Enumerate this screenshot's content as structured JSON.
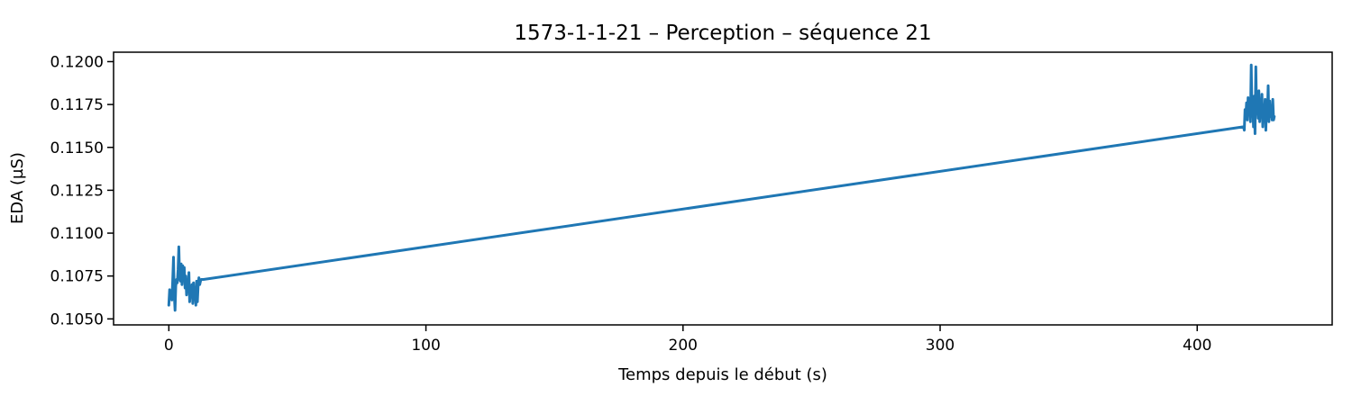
{
  "chart_data": {
    "type": "line",
    "title": "1573-1-1-21 – Perception – séquence 21",
    "xlabel": "Temps depuis le début (s)",
    "ylabel": "EDA (µS)",
    "xlim": [
      -21.5,
      452.5
    ],
    "ylim": [
      0.10465,
      0.12055
    ],
    "xticks": [
      0,
      100,
      200,
      300,
      400
    ],
    "xtick_labels": [
      "0",
      "100",
      "200",
      "300",
      "400"
    ],
    "yticks": [
      0.105,
      0.1075,
      0.11,
      0.1125,
      0.115,
      0.1175,
      0.12
    ],
    "ytick_labels": [
      "0.1050",
      "0.1075",
      "0.1100",
      "0.1125",
      "0.1150",
      "0.1175",
      "0.1200"
    ],
    "grid": false,
    "color": "#1f77b4",
    "series": [
      {
        "x": [
          0.0,
          0.3,
          0.6,
          0.9,
          1.2,
          1.5,
          1.8,
          2.1,
          2.4,
          2.7,
          3.0,
          3.3,
          3.6,
          3.9,
          4.2,
          4.5,
          4.8,
          5.1,
          5.4,
          5.7,
          6.0,
          6.3,
          6.6,
          6.9,
          7.2,
          7.5,
          7.8,
          8.1,
          8.4,
          8.7,
          9.0,
          9.3,
          9.6,
          9.9,
          10.2,
          10.5,
          10.8,
          11.1,
          11.4,
          11.7,
          12.0,
          12.3,
          12.6,
          12.9,
          13.2,
          13.5,
          418.0,
          418.3,
          418.6,
          418.9,
          419.2,
          419.5,
          419.8,
          420.1,
          420.4,
          420.7,
          421.0,
          421.3,
          421.6,
          421.9,
          422.2,
          422.5,
          422.8,
          423.1,
          423.4,
          423.7,
          424.0,
          424.3,
          424.6,
          424.9,
          425.2,
          425.5,
          425.8,
          426.1,
          426.4,
          426.7,
          427.0,
          427.3,
          427.6,
          427.9,
          428.2,
          428.5,
          428.8,
          429.1,
          429.4,
          429.7,
          430.0
        ],
        "y": [
          0.1058,
          0.1067,
          0.1062,
          0.1066,
          0.1061,
          0.1072,
          0.1086,
          0.1065,
          0.1055,
          0.1069,
          0.1073,
          0.1071,
          0.1079,
          0.1092,
          0.1074,
          0.1072,
          0.1082,
          0.107,
          0.1081,
          0.1073,
          0.108,
          0.1068,
          0.1075,
          0.1064,
          0.1071,
          0.1066,
          0.1077,
          0.106,
          0.1068,
          0.1063,
          0.107,
          0.1059,
          0.1071,
          0.1062,
          0.1067,
          0.1058,
          0.1072,
          0.106,
          0.1069,
          0.1074,
          0.107,
          0.1072,
          0.1073,
          0.1073,
          0.1073,
          0.1073,
          0.1162,
          0.116,
          0.1172,
          0.1168,
          0.1176,
          0.1166,
          0.1179,
          0.117,
          0.1177,
          0.1165,
          0.1198,
          0.117,
          0.1176,
          0.1162,
          0.118,
          0.1158,
          0.1197,
          0.1172,
          0.1175,
          0.1167,
          0.1183,
          0.1165,
          0.1175,
          0.117,
          0.1181,
          0.1162,
          0.1173,
          0.1167,
          0.1178,
          0.116,
          0.1175,
          0.1169,
          0.1186,
          0.1165,
          0.1177,
          0.1168,
          0.1172,
          0.1166,
          0.1178,
          0.1166,
          0.1168
        ]
      }
    ]
  }
}
